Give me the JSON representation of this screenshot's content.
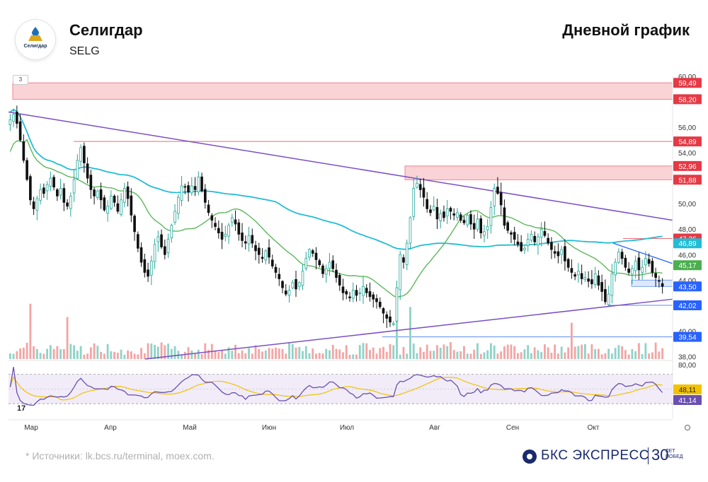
{
  "header": {
    "company": "Селигдар",
    "ticker": "SELG",
    "chart_type_label": "Дневной график",
    "logo_text": "Селигдар"
  },
  "indicator_badge": "3",
  "footer": {
    "source": "*  Источники: lk.bcs.ru/terminal, moex.com.",
    "brand": "БКС ЭКСПРЕСС",
    "brand_num": "30",
    "brand_sub_1": "ЛЕТ",
    "brand_sub_2": "ПОБЕД"
  },
  "colors": {
    "up": "#26a69a",
    "down": "#111111",
    "zone": "#f7b6bd",
    "ma_fast": "#22bcd6",
    "ma_slow": "#5cb85c",
    "trend": "#7b4fc7",
    "rsi": "#6a4fb0",
    "rsi_signal": "#f2c200",
    "rsi_band": "#ede7f6"
  },
  "chart_data": {
    "type": "candlestick",
    "x_tick_labels": [
      "Мар",
      "Апр",
      "Май",
      "Июн",
      "Июл",
      "Авг",
      "Сен",
      "Окт"
    ],
    "price_axis_ticks": [
      "60,00",
      "56,00",
      "54,00",
      "50,00",
      "48,00",
      "46,00",
      "44,00",
      "40,00",
      "38,00"
    ],
    "ylim": [
      37.8,
      60.0
    ],
    "resistance_zones": [
      {
        "low": 58.2,
        "high": 59.49
      },
      {
        "low": 51.88,
        "high": 52.96
      }
    ],
    "horizontal_levels": [
      {
        "value": 54.89,
        "label": "54,89",
        "kind": "red"
      },
      {
        "value": 47.26,
        "label": "47,26",
        "kind": "red"
      },
      {
        "value": 42.02,
        "label": "42,02",
        "kind": "blue"
      },
      {
        "value": 39.54,
        "label": "39,54",
        "kind": "blue"
      }
    ],
    "price_labels": [
      {
        "value": 59.49,
        "label": "59,49",
        "color": "#e53a45"
      },
      {
        "value": 58.2,
        "label": "58,20",
        "color": "#e53a45"
      },
      {
        "value": 54.89,
        "label": "54,89",
        "color": "#e53a45"
      },
      {
        "value": 52.96,
        "label": "52,96",
        "color": "#e53a45"
      },
      {
        "value": 51.88,
        "label": "51,88",
        "color": "#e53a45"
      },
      {
        "value": 47.26,
        "label": "47,26",
        "color": "#e53a45"
      },
      {
        "value": 46.89,
        "label": "46,89",
        "color": "#22bcd6"
      },
      {
        "value": 45.17,
        "label": "45,17",
        "color": "#4caf50"
      },
      {
        "value": 43.5,
        "label": "43,50",
        "color": "#2962ff"
      },
      {
        "value": 42.02,
        "label": "42,02",
        "color": "#2962ff"
      },
      {
        "value": 39.54,
        "label": "39,54",
        "color": "#2962ff"
      }
    ],
    "trendlines": [
      {
        "from": {
          "x": "Feb",
          "y": 57.2
        },
        "to": {
          "x": "Oct end",
          "y": 48.7
        }
      },
      {
        "from": {
          "x": "Mar end",
          "y": 38.0
        },
        "to": {
          "x": "Oct end",
          "y": 42.5
        }
      }
    ],
    "last_price": 43.5,
    "rsi": {
      "axis_top": "80,00",
      "value": 41.14,
      "value_label": "41,14",
      "signal": 48.11,
      "signal_label": "48,11",
      "band": [
        30,
        70
      ]
    },
    "closes": [
      56.6,
      57.0,
      56.3,
      55.0,
      53.4,
      51.9,
      50.3,
      49.6,
      50.4,
      51.1,
      50.8,
      51.5,
      52.0,
      51.3,
      50.6,
      51.2,
      50.1,
      49.8,
      50.6,
      51.9,
      53.4,
      54.4,
      53.2,
      52.0,
      51.1,
      50.6,
      51.0,
      50.3,
      49.5,
      49.8,
      50.6,
      50.1,
      49.4,
      50.3,
      51.2,
      50.4,
      49.1,
      47.8,
      46.5,
      45.4,
      44.6,
      44.3,
      45.5,
      46.8,
      47.4,
      46.6,
      46.0,
      47.2,
      48.3,
      49.4,
      50.5,
      51.4,
      51.3,
      50.9,
      51.4,
      51.1,
      52.1,
      51.0,
      50.1,
      49.3,
      48.7,
      48.2,
      47.7,
      47.2,
      47.6,
      48.3,
      48.9,
      48.4,
      47.6,
      47.1,
      46.9,
      47.5,
      46.9,
      46.3,
      46.0,
      45.7,
      46.3,
      45.8,
      45.1,
      44.6,
      44.1,
      43.4,
      42.9,
      43.2,
      43.8,
      43.3,
      43.8,
      44.7,
      45.7,
      46.4,
      46.1,
      45.6,
      45.2,
      44.5,
      44.9,
      45.4,
      44.9,
      44.2,
      43.6,
      43.0,
      42.9,
      42.6,
      43.2,
      42.8,
      43.0,
      43.5,
      43.0,
      42.7,
      42.5,
      42.3,
      41.9,
      41.4,
      41.0,
      40.7,
      40.6,
      43.4,
      46.0,
      45.4,
      46.9,
      48.9,
      51.2,
      51.6,
      51.1,
      50.5,
      49.6,
      49.3,
      49.8,
      48.8,
      49.2,
      48.9,
      49.6,
      49.4,
      49.1,
      49.3,
      48.7,
      48.5,
      49.1,
      48.4,
      48.0,
      48.8,
      47.7,
      47.8,
      48.2,
      49.7,
      51.2,
      50.8,
      49.9,
      48.3,
      47.9,
      47.6,
      47.2,
      46.8,
      46.3,
      46.5,
      47.2,
      47.6,
      47.0,
      47.4,
      48.0,
      47.5,
      46.9,
      46.4,
      46.1,
      45.9,
      46.4,
      45.5,
      45.0,
      44.6,
      44.3,
      44.7,
      44.1,
      44.2,
      43.9,
      43.7,
      44.5,
      43.6,
      43.1,
      42.3,
      42.9,
      44.5,
      45.4,
      46.2,
      45.7,
      45.0,
      44.6,
      44.9,
      45.5,
      44.8,
      45.0,
      45.7,
      45.3,
      44.6,
      44.2,
      43.9,
      43.5
    ]
  }
}
